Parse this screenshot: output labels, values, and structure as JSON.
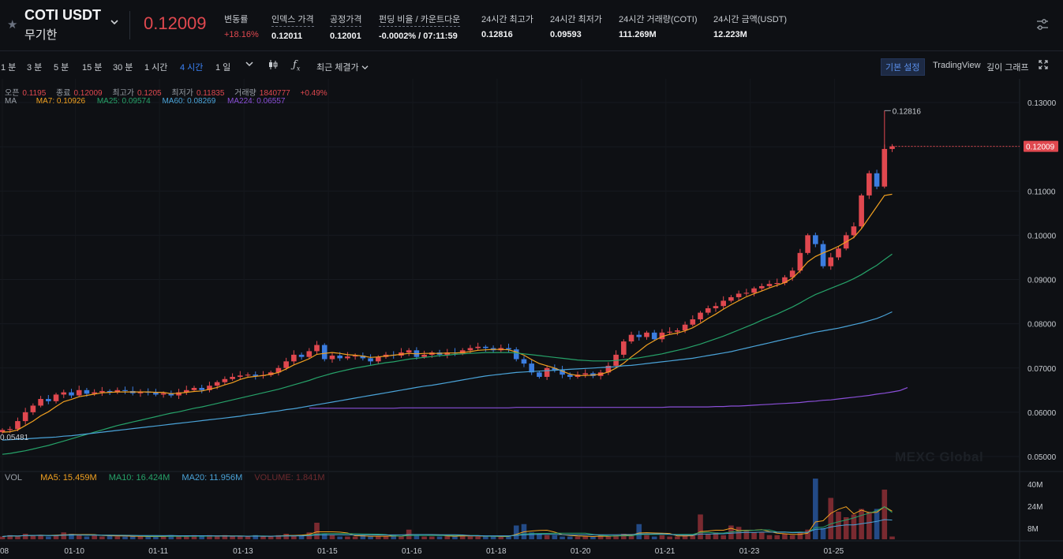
{
  "header": {
    "symbol": "COTI USDT",
    "contract_type": "무기한",
    "last_price": "0.12009",
    "stats": [
      {
        "label": "변동률",
        "value": "+18.16%",
        "red": true,
        "dotted": false
      },
      {
        "label": "인덱스 가격",
        "value": "0.12011",
        "red": false,
        "dotted": true
      },
      {
        "label": "공정가격",
        "value": "0.12001",
        "red": false,
        "dotted": true
      },
      {
        "label": "펀딩 비율 / 카운트다운",
        "value": "-0.0002% / 07:11:59",
        "red": false,
        "dotted": true
      },
      {
        "label": "24시간 최고가",
        "value": "0.12816",
        "red": false,
        "dotted": false
      },
      {
        "label": "24시간 최저가",
        "value": "0.09593",
        "red": false,
        "dotted": false
      },
      {
        "label": "24시간 거래량(COTI)",
        "value": "111.269M",
        "red": false,
        "dotted": false
      },
      {
        "label": "24시간 금액(USDT)",
        "value": "12.223M",
        "red": false,
        "dotted": false
      }
    ]
  },
  "toolbar": {
    "intervals": [
      "1 분",
      "3 분",
      "5 분",
      "15 분",
      "30 분",
      "1 시간",
      "4 시간",
      "1 일"
    ],
    "active_interval": "4 시간",
    "price_type": "최근 체결가",
    "view_basic": "기본 설정",
    "view_tv": "TradingView",
    "view_depth": "깊이 그래프"
  },
  "ohlc_legend": {
    "open_label": "오픈",
    "open": "0.1195",
    "close_label": "종료",
    "close": "0.12009",
    "high_label": "최고가",
    "high": "0.1205",
    "low_label": "최저가",
    "low": "0.11835",
    "vol_label": "거래량",
    "vol": "1840777",
    "change": "+0.49%"
  },
  "ma_legend": {
    "label": "MA",
    "ma7": "MA7: 0.10926",
    "ma25": "MA25: 0.09574",
    "ma60": "MA60: 0.08269",
    "ma224": "MA224: 0.06557"
  },
  "vol_legend": {
    "label": "VOL",
    "ma5": "MA5: 15.459M",
    "ma10": "MA10: 16.424M",
    "ma20": "MA20: 11.956M",
    "volume": "VOLUME: 1.841M"
  },
  "watermark": "MEXC Global",
  "colors": {
    "up": "#e0484f",
    "down": "#3b7de0",
    "ma7": "#f0a020",
    "ma25": "#26a269",
    "ma60": "#4aa3d8",
    "ma224": "#8a4fd8",
    "bg": "#0e1014"
  },
  "chart_data": {
    "type": "candlestick",
    "price_axis_ticks": [
      "0.13000",
      "0.12000",
      "0.11000",
      "0.10000",
      "0.09000",
      "0.08000",
      "0.07000",
      "0.06000",
      "0.05000"
    ],
    "price_range": [
      0.0465,
      0.1318
    ],
    "volume_axis_ticks": [
      "40M",
      "24M",
      "8M"
    ],
    "volume_range": [
      0,
      44
    ],
    "date_labels": [
      "08",
      "01-10",
      "01-11",
      "01-13",
      "01-15",
      "01-16",
      "01-18",
      "01-20",
      "01-21",
      "01-23",
      "01-25"
    ],
    "current_price_label": "0.12009",
    "high_label": "0.12816",
    "low_label": "0.05481",
    "close": [
      0.056,
      0.0562,
      0.058,
      0.06,
      0.0615,
      0.063,
      0.0625,
      0.064,
      0.0645,
      0.0638,
      0.065,
      0.0642,
      0.0645,
      0.0648,
      0.0645,
      0.065,
      0.0648,
      0.0643,
      0.0647,
      0.0644,
      0.064,
      0.0643,
      0.0638,
      0.0645,
      0.065,
      0.0655,
      0.065,
      0.066,
      0.0668,
      0.0675,
      0.068,
      0.0683,
      0.0685,
      0.0682,
      0.0684,
      0.069,
      0.07,
      0.0715,
      0.073,
      0.0725,
      0.0738,
      0.0752,
      0.072,
      0.0728,
      0.0722,
      0.0726,
      0.0728,
      0.0722,
      0.0715,
      0.0725,
      0.073,
      0.0728,
      0.0735,
      0.074,
      0.0725,
      0.073,
      0.0735,
      0.073,
      0.0735,
      0.0733,
      0.074,
      0.0745,
      0.0748,
      0.0745,
      0.074,
      0.0745,
      0.0742,
      0.072,
      0.071,
      0.069,
      0.068,
      0.07,
      0.0695,
      0.0685,
      0.068,
      0.0685,
      0.0688,
      0.0682,
      0.069,
      0.0705,
      0.073,
      0.076,
      0.0775,
      0.077,
      0.078,
      0.0765,
      0.078,
      0.0782,
      0.0785,
      0.0798,
      0.081,
      0.0825,
      0.0835,
      0.084,
      0.0852,
      0.086,
      0.0868,
      0.087,
      0.088,
      0.0885,
      0.089,
      0.0892,
      0.0905,
      0.092,
      0.096,
      0.1,
      0.098,
      0.093,
      0.095,
      0.097,
      0.1,
      0.102,
      0.109,
      0.114,
      0.111,
      0.1195,
      0.12009
    ],
    "series": [
      {
        "name": "MA7",
        "values": [
          0.0555,
          0.0556,
          0.056,
          0.057,
          0.058,
          0.0592,
          0.0601,
          0.0613,
          0.0624,
          0.0629,
          0.0635,
          0.0638,
          0.0641,
          0.0644,
          0.0645,
          0.0646,
          0.0646,
          0.0646,
          0.0646,
          0.0646,
          0.0645,
          0.0645,
          0.0642,
          0.0643,
          0.0645,
          0.0647,
          0.0648,
          0.0652,
          0.0656,
          0.0662,
          0.0667,
          0.0674,
          0.0679,
          0.0681,
          0.0683,
          0.0686,
          0.069,
          0.0698,
          0.0707,
          0.0714,
          0.0721,
          0.0731,
          0.0733,
          0.0735,
          0.0733,
          0.073,
          0.0729,
          0.0727,
          0.0724,
          0.0725,
          0.0727,
          0.0729,
          0.0731,
          0.0733,
          0.0732,
          0.0733,
          0.0733,
          0.0733,
          0.0734,
          0.0734,
          0.0735,
          0.0737,
          0.074,
          0.0741,
          0.0742,
          0.0742,
          0.0741,
          0.0736,
          0.0729,
          0.0719,
          0.071,
          0.0705,
          0.07,
          0.0693,
          0.0686,
          0.0683,
          0.0683,
          0.0684,
          0.0686,
          0.0691,
          0.07,
          0.0711,
          0.0725,
          0.0738,
          0.0752,
          0.0762,
          0.0771,
          0.0776,
          0.0779,
          0.0784,
          0.0791,
          0.0801,
          0.0812,
          0.0822,
          0.0833,
          0.0843,
          0.0852,
          0.0861,
          0.0868,
          0.0874,
          0.0881,
          0.0887,
          0.0893,
          0.0903,
          0.092,
          0.094,
          0.0952,
          0.096,
          0.0967,
          0.0975,
          0.0985,
          0.0995,
          0.1015,
          0.104,
          0.1065,
          0.109,
          0.10926
        ]
      },
      {
        "name": "MA25",
        "values": [
          0.0505,
          0.0507,
          0.051,
          0.0513,
          0.0517,
          0.0521,
          0.0525,
          0.053,
          0.0535,
          0.054,
          0.0545,
          0.055,
          0.0555,
          0.056,
          0.0565,
          0.057,
          0.0574,
          0.0578,
          0.0582,
          0.0586,
          0.059,
          0.0594,
          0.0598,
          0.0601,
          0.0605,
          0.0609,
          0.0612,
          0.0616,
          0.062,
          0.0624,
          0.0628,
          0.0632,
          0.0636,
          0.064,
          0.0644,
          0.0648,
          0.0652,
          0.0657,
          0.0662,
          0.0667,
          0.0672,
          0.0678,
          0.0683,
          0.0688,
          0.0692,
          0.0696,
          0.07,
          0.0703,
          0.0706,
          0.0709,
          0.0712,
          0.0714,
          0.0717,
          0.072,
          0.0722,
          0.0724,
          0.0726,
          0.0728,
          0.0729,
          0.0731,
          0.0732,
          0.0733,
          0.0734,
          0.0735,
          0.0735,
          0.0735,
          0.0735,
          0.0734,
          0.0732,
          0.073,
          0.0728,
          0.0726,
          0.0724,
          0.0722,
          0.072,
          0.0718,
          0.0717,
          0.0716,
          0.0716,
          0.0716,
          0.0717,
          0.0719,
          0.0721,
          0.0723,
          0.0726,
          0.0729,
          0.0732,
          0.0736,
          0.074,
          0.0744,
          0.0749,
          0.0754,
          0.076,
          0.0766,
          0.0772,
          0.0779,
          0.0786,
          0.0793,
          0.08,
          0.0808,
          0.0815,
          0.0822,
          0.083,
          0.0838,
          0.0847,
          0.0857,
          0.0866,
          0.0873,
          0.088,
          0.0887,
          0.0894,
          0.0902,
          0.0911,
          0.0922,
          0.0932,
          0.0945,
          0.09574
        ]
      },
      {
        "name": "MA60",
        "values": [
          0.0537,
          0.0538,
          0.0539,
          0.054,
          0.0541,
          0.0542,
          0.0543,
          0.0544,
          0.0546,
          0.0547,
          0.0549,
          0.0551,
          0.0553,
          0.0555,
          0.0557,
          0.0559,
          0.0561,
          0.0563,
          0.0565,
          0.0567,
          0.0569,
          0.0571,
          0.0573,
          0.0575,
          0.0577,
          0.0579,
          0.0581,
          0.0583,
          0.0585,
          0.0587,
          0.0589,
          0.0591,
          0.0594,
          0.0596,
          0.0598,
          0.0601,
          0.0603,
          0.0606,
          0.0608,
          0.0611,
          0.0614,
          0.0617,
          0.062,
          0.0623,
          0.0626,
          0.0629,
          0.0632,
          0.0635,
          0.0638,
          0.0641,
          0.0644,
          0.0647,
          0.065,
          0.0653,
          0.0656,
          0.0659,
          0.0661,
          0.0664,
          0.0667,
          0.067,
          0.0673,
          0.0676,
          0.0679,
          0.0682,
          0.0684,
          0.0686,
          0.0688,
          0.069,
          0.0691,
          0.0692,
          0.0693,
          0.0694,
          0.0695,
          0.0696,
          0.0697,
          0.0698,
          0.0699,
          0.07,
          0.0701,
          0.0702,
          0.0703,
          0.0705,
          0.0706,
          0.0708,
          0.071,
          0.0712,
          0.0714,
          0.0716,
          0.0718,
          0.072,
          0.0722,
          0.0725,
          0.0728,
          0.0731,
          0.0734,
          0.0737,
          0.0741,
          0.0745,
          0.0749,
          0.0753,
          0.0757,
          0.0761,
          0.0765,
          0.0769,
          0.0773,
          0.0777,
          0.0781,
          0.0784,
          0.0787,
          0.079,
          0.0794,
          0.0798,
          0.0802,
          0.0807,
          0.0812,
          0.0819,
          0.08269
        ]
      },
      {
        "name": "MA224",
        "start_index": 40,
        "values": [
          0.0609,
          0.0609,
          0.0609,
          0.0609,
          0.0609,
          0.0609,
          0.0609,
          0.0609,
          0.0609,
          0.0609,
          0.0609,
          0.0609,
          0.061,
          0.061,
          0.061,
          0.061,
          0.061,
          0.061,
          0.061,
          0.061,
          0.061,
          0.061,
          0.061,
          0.061,
          0.061,
          0.061,
          0.061,
          0.0611,
          0.0611,
          0.0611,
          0.0611,
          0.0611,
          0.0611,
          0.0611,
          0.0611,
          0.0611,
          0.0611,
          0.0611,
          0.0611,
          0.0611,
          0.0611,
          0.0611,
          0.0611,
          0.0611,
          0.0611,
          0.0611,
          0.0611,
          0.0612,
          0.0612,
          0.0612,
          0.0612,
          0.0612,
          0.0612,
          0.0613,
          0.0613,
          0.0614,
          0.0614,
          0.0615,
          0.0616,
          0.0617,
          0.0618,
          0.0619,
          0.062,
          0.0621,
          0.0622,
          0.0624,
          0.0625,
          0.0627,
          0.0628,
          0.063,
          0.0632,
          0.0634,
          0.0636,
          0.0638,
          0.0641,
          0.0643,
          0.0646,
          0.0649,
          0.06557
        ]
      }
    ],
    "volume": [
      2,
      3,
      2,
      4,
      3,
      3,
      2,
      3,
      5,
      4,
      3,
      2,
      3,
      2,
      3,
      2,
      2,
      2,
      2,
      2,
      2,
      2,
      3,
      2,
      2,
      3,
      2,
      3,
      2,
      3,
      2,
      2,
      2,
      3,
      2,
      2,
      3,
      4,
      3,
      3,
      5,
      12,
      4,
      3,
      2,
      2,
      2,
      3,
      2,
      2,
      2,
      3,
      2,
      7,
      3,
      2,
      2,
      2,
      3,
      2,
      3,
      2,
      2,
      2,
      2,
      2,
      2,
      10,
      11,
      5,
      4,
      3,
      3,
      2,
      2,
      2,
      2,
      2,
      3,
      2,
      3,
      4,
      3,
      11,
      3,
      2,
      3,
      2,
      2,
      3,
      3,
      18,
      4,
      5,
      3,
      10,
      9,
      6,
      5,
      5,
      3,
      3,
      4,
      3,
      5,
      7,
      44,
      8,
      30,
      20,
      16,
      18,
      22,
      20,
      22,
      36,
      2
    ]
  }
}
